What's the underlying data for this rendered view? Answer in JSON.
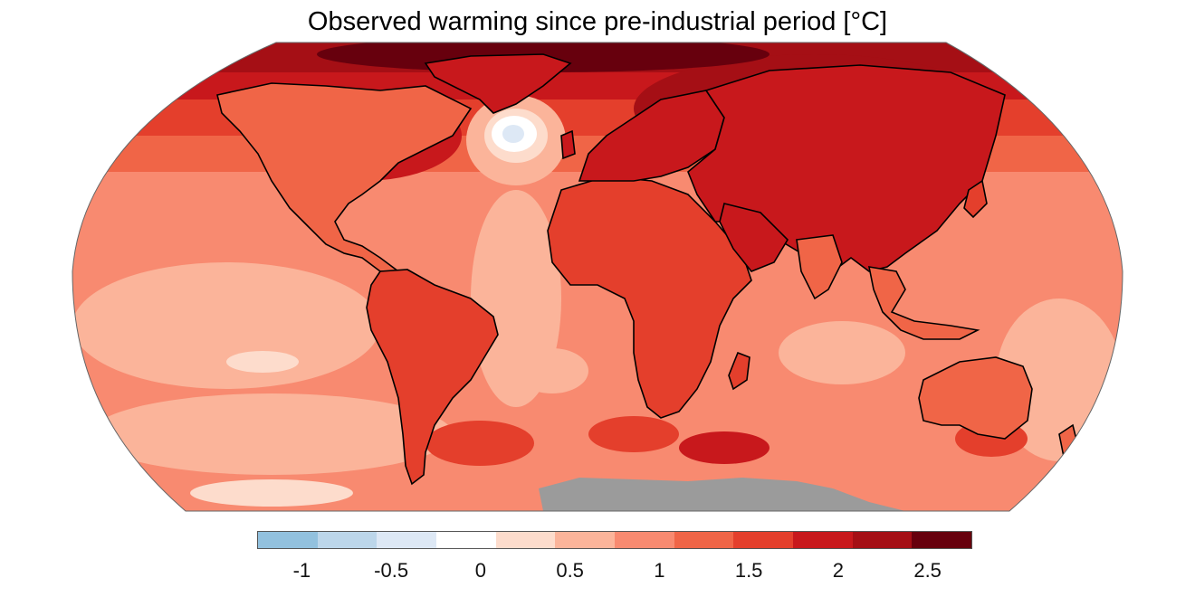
{
  "title": "Observed warming since pre-industrial period [°C]",
  "map": {
    "projection": "Robinson",
    "variable": "Observed warming since pre-industrial period",
    "unit": "°C",
    "no_data_region": "Antarctica",
    "no_data_color": "#9b9b9b",
    "land_outline_color": "#000000"
  },
  "colorbar": {
    "range": [
      -1.25,
      2.75
    ],
    "bin_width": 0.333,
    "colors": [
      "#92c1de",
      "#bcd6ea",
      "#dde8f5",
      "#ffffff",
      "#fddccc",
      "#fbb49a",
      "#f88a70",
      "#f06547",
      "#e43f2c",
      "#c8181c",
      "#a50f15",
      "#67000d"
    ],
    "ticks": [
      "-1",
      "-0.5",
      "0",
      "0.5",
      "1",
      "1.5",
      "2",
      "2.5"
    ],
    "tick_values": [
      -1,
      -0.5,
      0,
      0.5,
      1,
      1.5,
      2,
      2.5
    ]
  }
}
